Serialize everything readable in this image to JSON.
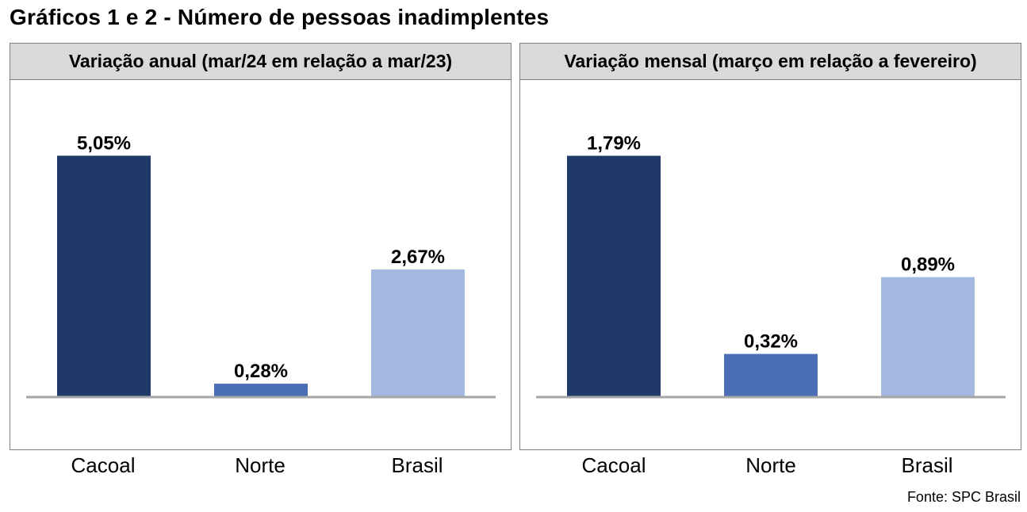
{
  "title": "Gráficos 1 e 2 - Número de pessoas inadimplentes",
  "source": "Fonte: SPC Brasil",
  "colors": {
    "cacoal": "#1f3a68",
    "norte": "#4a6db3",
    "brasil": "#a4b9e0",
    "header_bg": "#d9d9d9",
    "axis": "#a6a6a6"
  },
  "chart_data": [
    {
      "type": "bar",
      "title": "Variação anual (mar/24 em relação a mar/23)",
      "categories": [
        "Cacoal",
        "Norte",
        "Brasil"
      ],
      "values": [
        5.05,
        0.28,
        2.67
      ],
      "data_labels": [
        "5,05%",
        "0,28%",
        "2,67%"
      ],
      "bar_colors": [
        "#1f3a68",
        "#4a6db3",
        "#a4b9e0"
      ],
      "ylim": [
        0,
        6.6
      ],
      "grid": false
    },
    {
      "type": "bar",
      "title": "Variação mensal (março em relação a fevereiro)",
      "categories": [
        "Cacoal",
        "Norte",
        "Brasil"
      ],
      "values": [
        1.79,
        0.32,
        0.89
      ],
      "data_labels": [
        "1,79%",
        "0,32%",
        "0,89%"
      ],
      "bar_colors": [
        "#1f3a68",
        "#4a6db3",
        "#a4b9e0"
      ],
      "ylim": [
        0,
        2.34
      ],
      "grid": false
    }
  ]
}
